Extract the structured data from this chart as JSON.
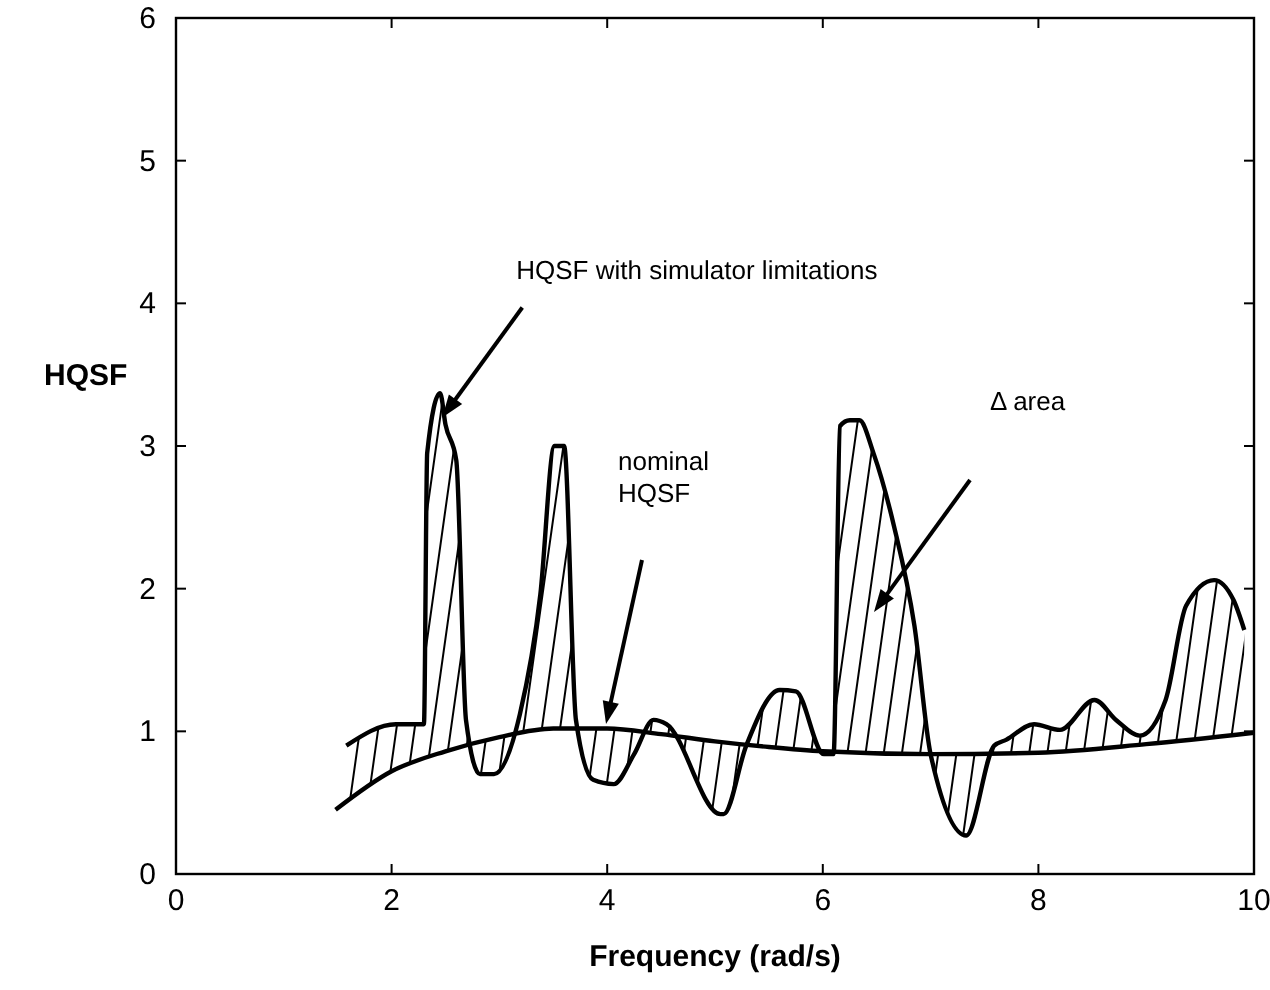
{
  "chart_data": {
    "type": "line",
    "xlabel": "Frequency (rad/s)",
    "ylabel": "HQSF",
    "xlim": [
      0,
      10
    ],
    "ylim": [
      0,
      6
    ],
    "xticks": [
      0,
      2,
      4,
      6,
      8,
      10
    ],
    "yticks": [
      0,
      1,
      2,
      3,
      4,
      5,
      6
    ],
    "grid": false,
    "marker": "none",
    "line_style": "solid",
    "series": [
      {
        "color": "#000000",
        "x": [
          1.58,
          2.04,
          2.3,
          2.33,
          2.45,
          2.5,
          2.6,
          2.69,
          2.82,
          2.95,
          3.19,
          3.38,
          3.51,
          3.6,
          3.71,
          3.87,
          4.06,
          4.25,
          4.43,
          4.55,
          5.05,
          5.08,
          5.29,
          5.6,
          5.75,
          6.01,
          6.1,
          6.16,
          6.25,
          6.34,
          6.47,
          6.66,
          6.85,
          7.0,
          7.33,
          7.59,
          7.7,
          7.96,
          8.2,
          8.52,
          8.72,
          8.94,
          9.18,
          9.37,
          9.63,
          9.81,
          9.91
        ],
        "values": [
          0.9,
          1.05,
          1.05,
          2.95,
          3.37,
          3.15,
          2.9,
          1.08,
          0.7,
          0.7,
          1.12,
          1.96,
          3.0,
          3.0,
          1.08,
          0.66,
          0.63,
          0.84,
          1.08,
          1.05,
          0.42,
          0.42,
          0.9,
          1.29,
          1.28,
          0.84,
          0.84,
          3.14,
          3.18,
          3.18,
          2.95,
          2.44,
          1.74,
          0.84,
          0.27,
          0.9,
          0.94,
          1.05,
          1.01,
          1.22,
          1.08,
          0.97,
          1.22,
          1.88,
          2.06,
          1.92,
          1.71
        ],
        "lower": [
          0.5,
          0.73,
          0.81,
          0.82,
          0.85,
          0.86,
          0.88,
          0.9,
          0.93,
          0.95,
          0.98,
          1.01,
          1.02,
          1.02,
          1.02,
          1.02,
          1.02,
          1.0,
          0.98,
          0.98,
          0.93,
          0.93,
          0.91,
          0.88,
          0.87,
          0.86,
          0.86,
          0.86,
          0.85,
          0.85,
          0.85,
          0.84,
          0.84,
          0.84,
          0.84,
          0.84,
          0.84,
          0.85,
          0.86,
          0.88,
          0.89,
          0.91,
          0.92,
          0.94,
          0.96,
          0.97,
          0.98
        ],
        "upper": [
          0.9,
          1.05,
          1.05,
          2.95,
          3.37,
          3.15,
          2.9,
          1.08,
          0.7,
          0.7,
          1.12,
          1.96,
          3.0,
          3.0,
          1.08,
          0.66,
          0.63,
          0.84,
          1.08,
          1.05,
          0.42,
          0.42,
          0.9,
          1.29,
          1.28,
          0.84,
          0.84,
          3.14,
          3.18,
          3.18,
          2.95,
          2.44,
          1.74,
          0.84,
          0.27,
          0.9,
          0.94,
          1.05,
          1.01,
          1.22,
          1.08,
          0.97,
          1.22,
          1.88,
          2.06,
          1.92,
          1.71
        ]
      },
      {
        "color": "#000000",
        "x": [
          1.48,
          2,
          2.5,
          3,
          3.5,
          4,
          4.5,
          5,
          5.5,
          6,
          7,
          8,
          9,
          10
        ],
        "values": [
          0.45,
          0.72,
          0.86,
          0.96,
          1.02,
          1.02,
          0.98,
          0.93,
          0.89,
          0.86,
          0.84,
          0.85,
          0.91,
          0.99
        ]
      }
    ],
    "annotations": [
      {
        "text": "HQSF with simulator limitations",
        "x": 2.47,
        "y": 3.2
      },
      "nominal\nHQSF",
      "Δ area"
    ]
  }
}
